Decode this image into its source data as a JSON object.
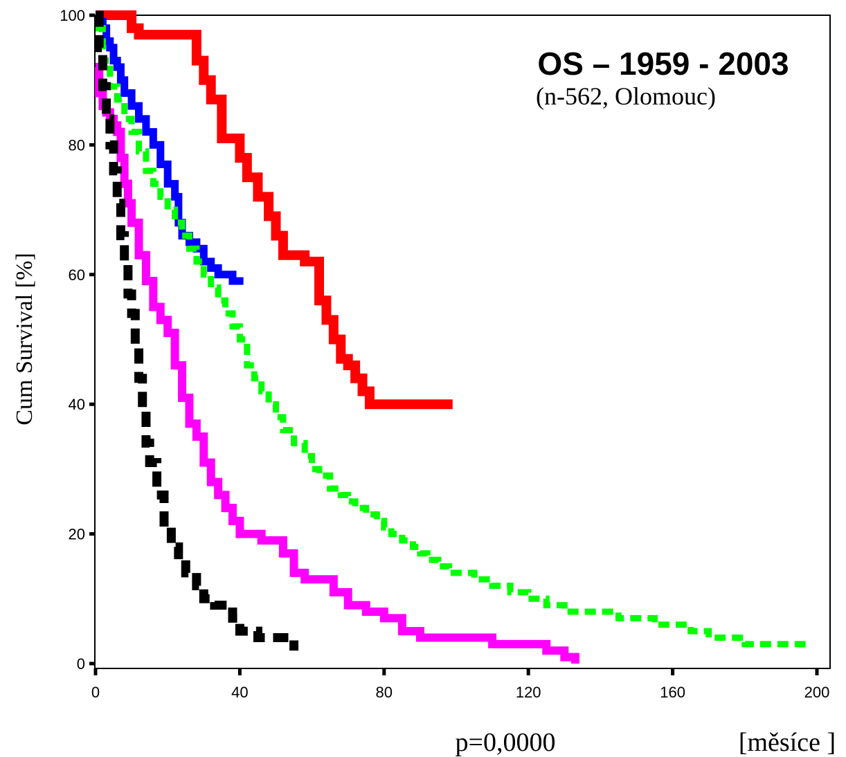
{
  "chart_data": {
    "type": "line",
    "title": "OS – 1959 - 2003",
    "subtitle": "(n-562, Olomouc)",
    "xlabel": "[měsíce ]",
    "ylabel": "Cum Survival [%]",
    "annotation": "p=0,0000",
    "xlim": [
      0,
      200
    ],
    "ylim": [
      0,
      100
    ],
    "x_ticks": [
      0,
      40,
      80,
      120,
      160,
      200
    ],
    "y_ticks": [
      0,
      20,
      40,
      60,
      80,
      100
    ],
    "grid": false,
    "series": [
      {
        "color": "#ff0000",
        "x": [
          0,
          3,
          6,
          8,
          10,
          12,
          18,
          22,
          25,
          28,
          30,
          32,
          35,
          38,
          40,
          42,
          45,
          48,
          50,
          52,
          55,
          58,
          60,
          62,
          64,
          66,
          68,
          70,
          72,
          74,
          76,
          78,
          99
        ],
        "y": [
          100,
          100,
          100,
          100,
          98,
          97,
          97,
          97,
          97,
          93,
          90,
          87,
          81,
          81,
          78,
          75,
          72,
          69,
          66,
          63,
          63,
          62,
          62,
          56,
          53,
          50,
          47,
          46,
          44,
          42,
          40,
          40,
          40
        ]
      },
      {
        "color": "#0000ff",
        "x": [
          0,
          1,
          2,
          3,
          4,
          5,
          6,
          7,
          8,
          10,
          12,
          14,
          16,
          18,
          20,
          22,
          23,
          24,
          26,
          28,
          30,
          32,
          34,
          36,
          38,
          40,
          41
        ],
        "y": [
          100,
          99,
          98,
          96,
          95,
          93,
          92,
          90,
          88,
          86,
          84,
          82,
          80,
          77,
          74,
          72,
          68,
          66,
          65,
          64,
          62,
          61,
          60,
          60,
          59,
          59,
          59
        ]
      },
      {
        "color": "#00ff00",
        "x": [
          0,
          2,
          4,
          6,
          8,
          10,
          12,
          14,
          16,
          18,
          20,
          22,
          24,
          26,
          28,
          30,
          32,
          34,
          36,
          38,
          40,
          42,
          44,
          46,
          48,
          50,
          52,
          55,
          58,
          60,
          62,
          65,
          68,
          70,
          72,
          75,
          78,
          80,
          82,
          85,
          88,
          90,
          92,
          95,
          98,
          100,
          105,
          110,
          115,
          120,
          125,
          130,
          135,
          140,
          145,
          150,
          155,
          160,
          165,
          170,
          175,
          180,
          185,
          190,
          196
        ],
        "y": [
          98,
          93,
          89,
          87,
          84,
          82,
          79,
          76,
          74,
          72,
          70,
          68,
          66,
          64,
          62,
          60,
          58,
          56,
          54,
          52,
          50,
          46,
          44,
          42,
          40,
          38,
          36,
          34,
          32,
          30,
          29,
          27,
          26,
          25,
          24,
          23,
          22,
          21,
          20,
          19,
          18,
          17,
          16,
          15,
          14,
          14,
          13,
          12,
          11,
          10,
          9,
          8,
          8,
          8,
          7,
          7,
          6,
          6,
          5,
          4,
          4,
          3,
          3,
          3,
          2
        ]
      },
      {
        "color": "#ff00ff",
        "x": [
          0,
          1,
          2,
          3,
          4,
          5,
          6,
          7,
          8,
          9,
          10,
          12,
          14,
          16,
          18,
          20,
          22,
          24,
          26,
          28,
          30,
          32,
          34,
          36,
          38,
          40,
          42,
          46,
          50,
          52,
          55,
          58,
          62,
          66,
          70,
          75,
          80,
          85,
          90,
          95,
          100,
          105,
          110,
          115,
          120,
          125,
          130,
          133
        ],
        "y": [
          92,
          88,
          86,
          85,
          84,
          83,
          82,
          78,
          74,
          71,
          68,
          63,
          59,
          55,
          53,
          51,
          46,
          41,
          37,
          35,
          31,
          28,
          26,
          24,
          22,
          20,
          20,
          19,
          19,
          17,
          14,
          13,
          13,
          11,
          9,
          8,
          7,
          5,
          4,
          4,
          4,
          4,
          3,
          3,
          3,
          2,
          1,
          0
        ]
      },
      {
        "color": "#000000",
        "x": [
          0,
          1,
          2,
          3,
          4,
          5,
          6,
          7,
          8,
          9,
          10,
          11,
          12,
          13,
          14,
          15,
          17,
          19,
          21,
          23,
          25,
          28,
          30,
          33,
          36,
          38,
          40,
          45,
          50,
          55
        ],
        "y": [
          100,
          95,
          89,
          84,
          80,
          76,
          71,
          66,
          62,
          57,
          54,
          49,
          44,
          39,
          34,
          31,
          26,
          21,
          18,
          16,
          14,
          12,
          10,
          9,
          9,
          7,
          5,
          4,
          4,
          2
        ]
      }
    ]
  }
}
